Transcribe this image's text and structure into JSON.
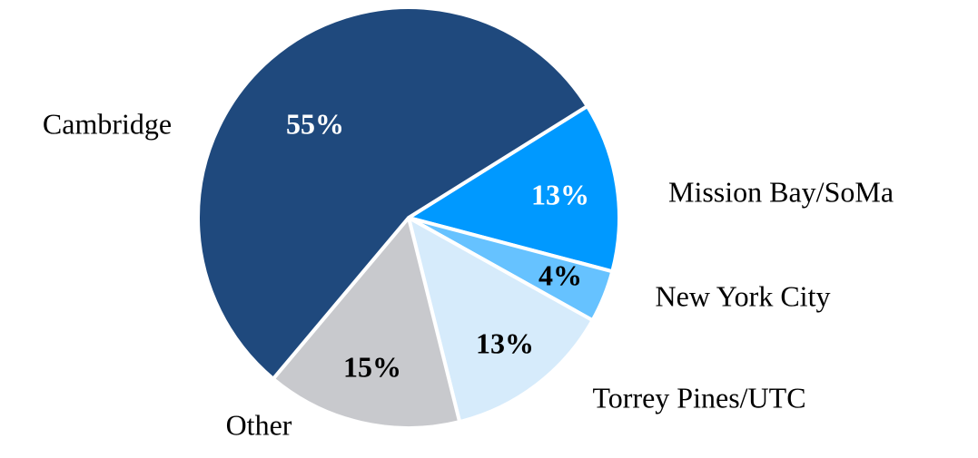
{
  "chart_data": {
    "type": "pie",
    "categories": [
      "Mission Bay/SoMa",
      "New York City",
      "Torrey Pines/UTC",
      "Other",
      "Cambridge"
    ],
    "values": [
      13,
      4,
      13,
      15,
      55
    ],
    "value_labels": [
      "13%",
      "4%",
      "13%",
      "15%",
      "55%"
    ],
    "colors": [
      "#0099ff",
      "#66c2ff",
      "#d6ebfb",
      "#c8c9cd",
      "#1f497d"
    ]
  }
}
